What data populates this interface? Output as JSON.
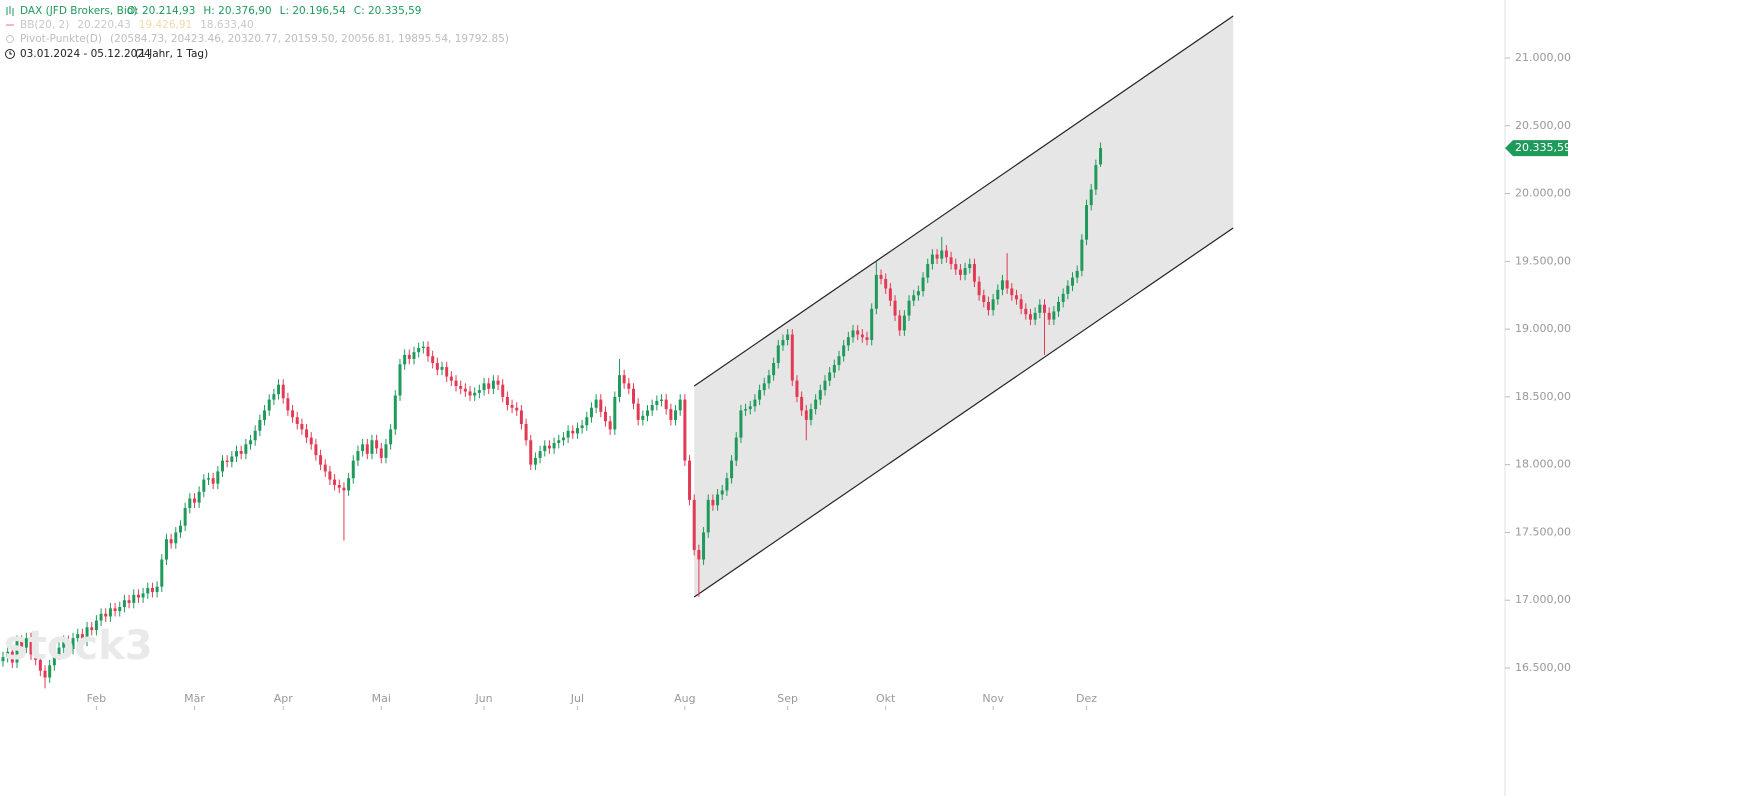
{
  "chart_data": {
    "type": "candlestick",
    "title": "DAX (JFD Brokers, Bid)",
    "ohlc_labels": [
      "O: 20.214,93",
      "H: 20.376,90",
      "L: 20.196,54",
      "C: 20.335,59"
    ],
    "indicators": [
      {
        "name": "BB(20, 2)",
        "values": [
          "20.220,43",
          "19.426,91",
          "18.633,40"
        ]
      },
      {
        "name": "Pivot-Punkte(D)",
        "values": [
          "(20584.73,  20423.46,  20320.77,  20159.50,  20056.81,  19895.54,  19792.85)"
        ]
      }
    ],
    "period": "03.01.2024 - 05.12.2024",
    "period_note": "(1 Jahr, 1 Tag)",
    "watermark": "stock3",
    "last_price_label": "20.335,59",
    "up_color": "#1f9a5b",
    "down_color": "#e23a54",
    "xlim": [
      -0.64,
      321.6
    ],
    "ylim": [
      16190,
      21428
    ],
    "xticks": [
      {
        "value": 20,
        "label": "Feb"
      },
      {
        "value": 41,
        "label": "Mär"
      },
      {
        "value": 60,
        "label": "Apr"
      },
      {
        "value": 81,
        "label": "Mai"
      },
      {
        "value": 103,
        "label": "Jun"
      },
      {
        "value": 123,
        "label": "Jul"
      },
      {
        "value": 146,
        "label": "Aug"
      },
      {
        "value": 168,
        "label": "Sep"
      },
      {
        "value": 189,
        "label": "Okt"
      },
      {
        "value": 212,
        "label": "Nov"
      },
      {
        "value": 232,
        "label": "Dez"
      }
    ],
    "yticks": [
      {
        "value": 16500,
        "label": "16.500,00"
      },
      {
        "value": 17000,
        "label": "17.000,00"
      },
      {
        "value": 17500,
        "label": "17.500,00"
      },
      {
        "value": 18000,
        "label": "18.000,00"
      },
      {
        "value": 18500,
        "label": "18.500,00"
      },
      {
        "value": 19000,
        "label": "19.000,00"
      },
      {
        "value": 19500,
        "label": "19.500,00"
      },
      {
        "value": 20000,
        "label": "20.000,00"
      },
      {
        "value": 20500,
        "label": "20.500,00"
      },
      {
        "value": 21000,
        "label": "21.000,00"
      }
    ],
    "channel": {
      "upper": [
        [
          148,
          18580
        ],
        [
          263.4,
          21310
        ]
      ],
      "lower": [
        [
          148,
          17024
        ],
        [
          263.4,
          19746
        ]
      ]
    },
    "open": [
      16550,
      16580,
      16620,
      16540,
      16700,
      16650,
      16720,
      16600,
      16560,
      16480,
      16430,
      16520,
      16600,
      16650,
      16700,
      16640,
      16720,
      16750,
      16700,
      16800,
      16780,
      16850,
      16900,
      16880,
      16940,
      16920,
      16950,
      17000,
      16980,
      17040,
      17020,
      17050,
      17090,
      17060,
      17100,
      17300,
      17450,
      17420,
      17500,
      17550,
      17680,
      17750,
      17720,
      17800,
      17890,
      17900,
      17860,
      17950,
      18030,
      18020,
      18060,
      18100,
      18080,
      18150,
      18180,
      18250,
      18330,
      18400,
      18480,
      18520,
      18590,
      18490,
      18400,
      18350,
      18300,
      18260,
      18200,
      18150,
      18070,
      18000,
      17950,
      17890,
      17850,
      17830,
      17810,
      17900,
      18030,
      18100,
      18150,
      18080,
      18180,
      18120,
      18050,
      18150,
      18260,
      18510,
      18740,
      18810,
      18780,
      18830,
      18860,
      18870,
      18800,
      18750,
      18700,
      18720,
      18650,
      18620,
      18580,
      18560,
      18540,
      18510,
      18530,
      18550,
      18600,
      18560,
      18620,
      18590,
      18500,
      18440,
      18420,
      18400,
      18300,
      18180,
      18000,
      18050,
      18100,
      18140,
      18120,
      18160,
      18180,
      18200,
      18250,
      18230,
      18270,
      18290,
      18350,
      18420,
      18480,
      18390,
      18320,
      18260,
      18500,
      18660,
      18600,
      18560,
      18450,
      18330,
      18360,
      18400,
      18440,
      18470,
      18480,
      18410,
      18330,
      18400,
      18480,
      18030,
      17740,
      17370,
      17300,
      17500,
      17740,
      17700,
      17780,
      17810,
      17900,
      18030,
      18200,
      18400,
      18410,
      18430,
      18480,
      18550,
      18600,
      18660,
      18750,
      18880,
      18920,
      18960,
      18620,
      18500,
      18400,
      18330,
      18410,
      18480,
      18550,
      18620,
      18680,
      18735,
      18800,
      18880,
      18940,
      18990,
      18960,
      18940,
      18920,
      19150,
      19400,
      19370,
      19300,
      19210,
      19100,
      18990,
      19100,
      19210,
      19250,
      19280,
      19380,
      19480,
      19550,
      19520,
      19580,
      19530,
      19480,
      19440,
      19400,
      19450,
      19480,
      19350,
      19250,
      19200,
      19140,
      19220,
      19290,
      19360,
      19300,
      19250,
      19220,
      19150,
      19110,
      19070,
      19120,
      19180,
      19120,
      19070,
      19130,
      19200,
      19260,
      19320,
      19380,
      19430,
      19660,
      19915,
      20030,
      20214.93
    ],
    "high": [
      16620,
      16660,
      16660,
      16740,
      16740,
      16760,
      16760,
      16640,
      16600,
      16520,
      16560,
      16640,
      16690,
      16740,
      16740,
      16760,
      16790,
      16790,
      16840,
      16840,
      16890,
      16940,
      16940,
      16980,
      16980,
      16990,
      17040,
      17040,
      17080,
      17080,
      17090,
      17130,
      17130,
      17140,
      17340,
      17490,
      17490,
      17540,
      17590,
      17720,
      17790,
      17790,
      17840,
      17930,
      17940,
      17940,
      17990,
      18070,
      18070,
      18100,
      18140,
      18140,
      18190,
      18220,
      18290,
      18370,
      18440,
      18520,
      18560,
      18630,
      18630,
      18530,
      18440,
      18390,
      18340,
      18300,
      18240,
      18190,
      18110,
      18040,
      17990,
      17930,
      17890,
      17870,
      17940,
      18070,
      18140,
      18190,
      18190,
      18220,
      18220,
      18160,
      18190,
      18300,
      18550,
      18780,
      18850,
      18850,
      18870,
      18900,
      18910,
      18910,
      18840,
      18790,
      18760,
      18760,
      18690,
      18660,
      18620,
      18600,
      18580,
      18570,
      18590,
      18640,
      18640,
      18660,
      18660,
      18630,
      18540,
      18480,
      18460,
      18440,
      18340,
      18220,
      18090,
      18140,
      18180,
      18180,
      18200,
      18220,
      18240,
      18290,
      18290,
      18310,
      18330,
      18390,
      18460,
      18520,
      18520,
      18430,
      18360,
      18540,
      18780,
      18700,
      18640,
      18600,
      18490,
      18400,
      18440,
      18480,
      18510,
      18520,
      18520,
      18450,
      18440,
      18520,
      18520,
      18070,
      17780,
      17410,
      17540,
      17780,
      17780,
      17820,
      17850,
      17940,
      18070,
      18240,
      18440,
      18450,
      18470,
      18520,
      18590,
      18640,
      18700,
      18790,
      18920,
      18960,
      19000,
      19000,
      18660,
      18540,
      18440,
      18450,
      18520,
      18590,
      18660,
      18720,
      18775,
      18840,
      18920,
      18980,
      19030,
      19030,
      19000,
      18980,
      19190,
      19500,
      19440,
      19410,
      19340,
      19250,
      19140,
      19140,
      19250,
      19290,
      19320,
      19420,
      19520,
      19590,
      19590,
      19680,
      19620,
      19570,
      19520,
      19480,
      19490,
      19520,
      19520,
      19390,
      19290,
      19240,
      19260,
      19330,
      19400,
      19560,
      19340,
      19290,
      19260,
      19190,
      19150,
      19160,
      19220,
      19220,
      19160,
      19170,
      19240,
      19300,
      19360,
      19420,
      19470,
      19700,
      19955,
      20070,
      20250,
      20376.9
    ],
    "low": [
      16510,
      16540,
      16500,
      16500,
      16610,
      16610,
      16560,
      16520,
      16440,
      16350,
      16390,
      16480,
      16560,
      16610,
      16600,
      16600,
      16680,
      16660,
      16660,
      16740,
      16740,
      16810,
      16840,
      16840,
      16880,
      16880,
      16910,
      16940,
      16940,
      16980,
      16980,
      17010,
      17020,
      17020,
      17060,
      17260,
      17380,
      17380,
      17460,
      17510,
      17640,
      17680,
      17680,
      17760,
      17850,
      17820,
      17820,
      17910,
      17980,
      17980,
      18020,
      18040,
      18040,
      18110,
      18140,
      18210,
      18290,
      18360,
      18440,
      18480,
      18450,
      18360,
      18310,
      18260,
      18220,
      18160,
      18110,
      18030,
      17960,
      17910,
      17850,
      17810,
      17790,
      17440,
      17770,
      17860,
      17990,
      18060,
      18040,
      18040,
      18080,
      18010,
      18010,
      18110,
      18220,
      18470,
      18700,
      18740,
      18740,
      18790,
      18820,
      18760,
      18710,
      18660,
      18660,
      18610,
      18580,
      18540,
      18520,
      18500,
      18470,
      18470,
      18490,
      18510,
      18520,
      18520,
      18550,
      18460,
      18400,
      18380,
      18360,
      18260,
      18140,
      17960,
      17960,
      18010,
      18060,
      18080,
      18080,
      18120,
      18140,
      18160,
      18190,
      18190,
      18230,
      18250,
      18310,
      18380,
      18350,
      18280,
      18220,
      18220,
      18460,
      18560,
      18520,
      18410,
      18290,
      18290,
      18320,
      18360,
      18400,
      18430,
      18370,
      18290,
      18290,
      18360,
      17990,
      17700,
      17330,
      17024,
      17260,
      17460,
      17660,
      17660,
      17740,
      17770,
      17860,
      17990,
      18160,
      18360,
      18370,
      18390,
      18440,
      18510,
      18560,
      18620,
      18710,
      18840,
      18880,
      18580,
      18460,
      18360,
      18180,
      18290,
      18370,
      18440,
      18510,
      18580,
      18640,
      18695,
      18760,
      18840,
      18900,
      18920,
      18900,
      18880,
      18880,
      19110,
      19330,
      19260,
      19170,
      19060,
      18950,
      18950,
      19060,
      19170,
      19210,
      19240,
      19340,
      19440,
      19480,
      19480,
      19490,
      19440,
      19400,
      19360,
      19360,
      19410,
      19310,
      19210,
      19160,
      19100,
      19100,
      19180,
      19250,
      19260,
      19210,
      19180,
      19110,
      19070,
      19030,
      19030,
      19080,
      18810,
      19030,
      19030,
      19090,
      19160,
      19220,
      19280,
      19340,
      19390,
      19620,
      19875,
      19990,
      20196.54
    ],
    "close": [
      16580,
      16620,
      16540,
      16700,
      16650,
      16720,
      16600,
      16560,
      16480,
      16430,
      16520,
      16600,
      16650,
      16700,
      16640,
      16720,
      16750,
      16700,
      16800,
      16780,
      16850,
      16900,
      16880,
      16940,
      16920,
      16950,
      17000,
      16980,
      17040,
      17020,
      17050,
      17090,
      17060,
      17100,
      17300,
      17450,
      17420,
      17500,
      17550,
      17680,
      17750,
      17720,
      17800,
      17890,
      17900,
      17860,
      17950,
      18030,
      18020,
      18060,
      18100,
      18080,
      18150,
      18180,
      18250,
      18330,
      18400,
      18480,
      18520,
      18590,
      18490,
      18400,
      18350,
      18300,
      18260,
      18200,
      18150,
      18070,
      18000,
      17950,
      17890,
      17850,
      17830,
      17810,
      17900,
      18030,
      18100,
      18150,
      18080,
      18180,
      18120,
      18050,
      18150,
      18260,
      18510,
      18740,
      18810,
      18780,
      18830,
      18860,
      18870,
      18800,
      18750,
      18700,
      18720,
      18650,
      18620,
      18580,
      18560,
      18540,
      18510,
      18530,
      18550,
      18600,
      18560,
      18620,
      18590,
      18500,
      18440,
      18420,
      18400,
      18300,
      18180,
      18000,
      18050,
      18100,
      18140,
      18120,
      18160,
      18180,
      18200,
      18250,
      18230,
      18270,
      18290,
      18350,
      18420,
      18480,
      18390,
      18320,
      18260,
      18500,
      18660,
      18600,
      18560,
      18450,
      18330,
      18360,
      18400,
      18440,
      18470,
      18480,
      18410,
      18330,
      18400,
      18480,
      18030,
      17740,
      17370,
      17300,
      17500,
      17740,
      17700,
      17780,
      17810,
      17900,
      18030,
      18200,
      18400,
      18410,
      18430,
      18480,
      18550,
      18600,
      18660,
      18750,
      18880,
      18920,
      18960,
      18620,
      18500,
      18400,
      18330,
      18410,
      18480,
      18550,
      18620,
      18680,
      18735,
      18800,
      18880,
      18940,
      18990,
      18960,
      18940,
      18920,
      19150,
      19400,
      19370,
      19300,
      19210,
      19100,
      18990,
      19100,
      19210,
      19250,
      19280,
      19380,
      19480,
      19550,
      19520,
      19580,
      19530,
      19480,
      19440,
      19400,
      19450,
      19480,
      19350,
      19250,
      19200,
      19140,
      19220,
      19290,
      19360,
      19300,
      19250,
      19220,
      19150,
      19110,
      19070,
      19120,
      19180,
      19120,
      19070,
      19130,
      19200,
      19260,
      19320,
      19380,
      19430,
      19660,
      19915,
      20030,
      20210,
      20335.59
    ]
  }
}
